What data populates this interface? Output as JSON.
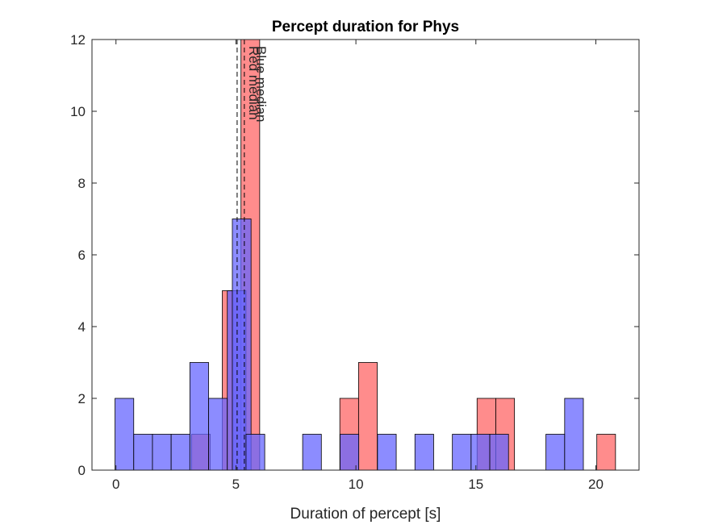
{
  "chart_data": {
    "type": "bar",
    "title": "Percept duration for Phys",
    "xlabel": "Duration of percept [s]",
    "ylabel": "",
    "xlim": [
      -1,
      21.8
    ],
    "ylim": [
      0,
      12
    ],
    "xticks": [
      "0",
      "5",
      "10",
      "15",
      "20"
    ],
    "yticks": [
      "0",
      "2",
      "4",
      "6",
      "8",
      "10",
      "12"
    ],
    "grid": false,
    "bin_width": 0.78,
    "series": [
      {
        "color": "#ff6666",
        "bins": [
          {
            "x0": 3.15,
            "count": 1
          },
          {
            "x0": 4.43,
            "count": 5
          },
          {
            "x0": 5.21,
            "count": 12
          },
          {
            "x0": 9.33,
            "count": 2
          },
          {
            "x0": 10.11,
            "count": 3
          },
          {
            "x0": 15.05,
            "count": 2
          },
          {
            "x0": 15.83,
            "count": 2
          },
          {
            "x0": 20.04,
            "count": 1
          }
        ]
      },
      {
        "color": "#6666ff",
        "bins": [
          {
            "x0": -0.04,
            "count": 2
          },
          {
            "x0": 0.74,
            "count": 1
          },
          {
            "x0": 1.52,
            "count": 1
          },
          {
            "x0": 2.3,
            "count": 1
          },
          {
            "x0": 3.08,
            "count": 3
          },
          {
            "x0": 3.86,
            "count": 2
          },
          {
            "x0": 4.64,
            "count": 5
          },
          {
            "x0": 4.85,
            "count": 7
          },
          {
            "x0": 5.42,
            "count": 1
          },
          {
            "x0": 7.78,
            "count": 1
          },
          {
            "x0": 9.34,
            "count": 1
          },
          {
            "x0": 10.9,
            "count": 1
          },
          {
            "x0": 12.46,
            "count": 1
          },
          {
            "x0": 14.02,
            "count": 1
          },
          {
            "x0": 14.8,
            "count": 1
          },
          {
            "x0": 15.58,
            "count": 1
          },
          {
            "x0": 17.92,
            "count": 1
          },
          {
            "x0": 18.7,
            "count": 2
          }
        ]
      }
    ],
    "medians": [
      {
        "label": "Red median",
        "x": 5.05
      },
      {
        "label": "Blue median",
        "x": 5.35
      }
    ]
  }
}
